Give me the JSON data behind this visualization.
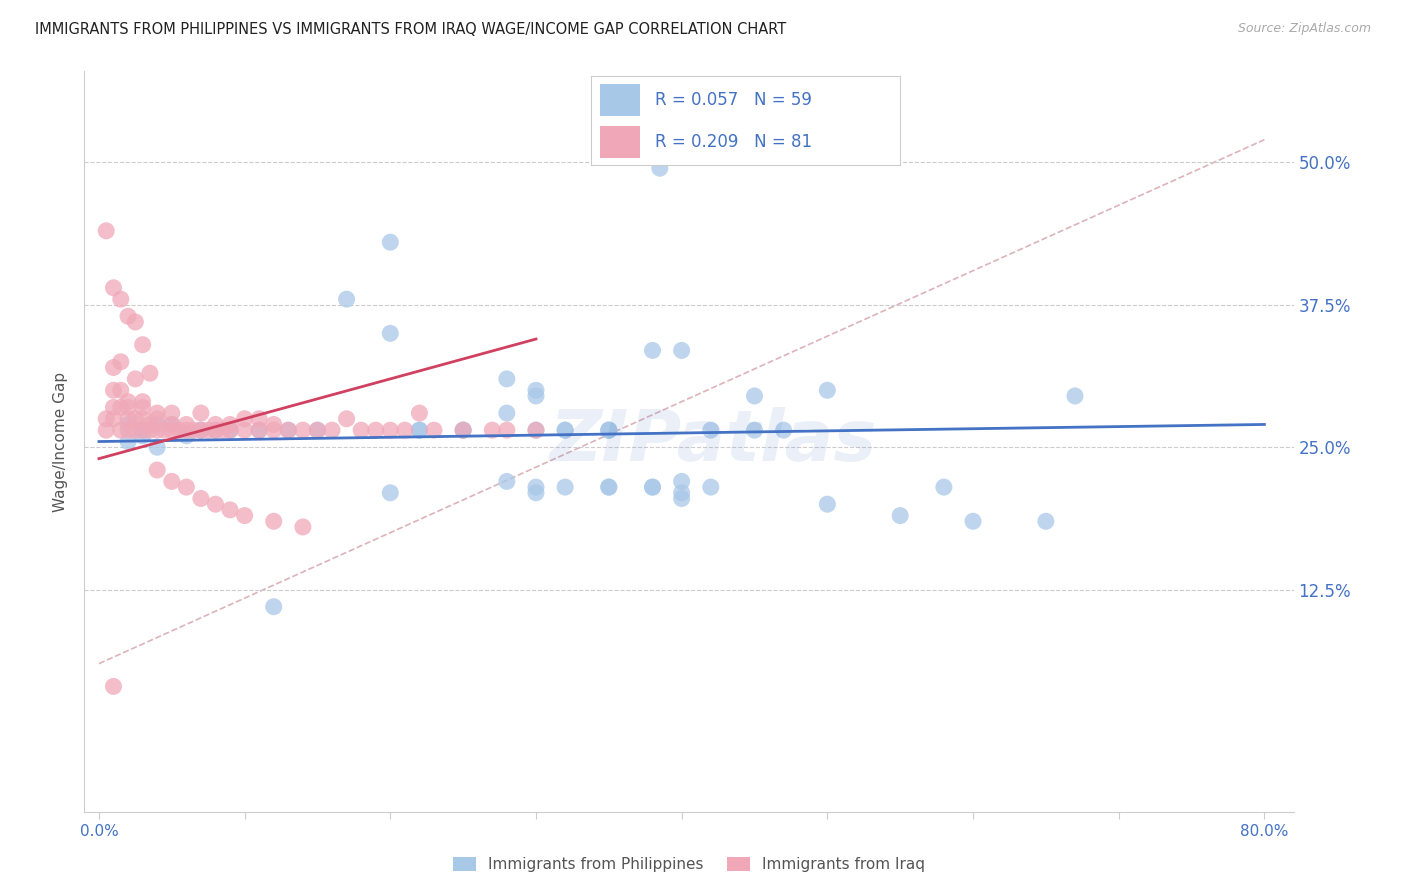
{
  "title": "IMMIGRANTS FROM PHILIPPINES VS IMMIGRANTS FROM IRAQ WAGE/INCOME GAP CORRELATION CHART",
  "source": "Source: ZipAtlas.com",
  "ylabel": "Wage/Income Gap",
  "legend_label_blue": "Immigrants from Philippines",
  "legend_label_pink": "Immigrants from Iraq",
  "r_blue": "R = 0.057",
  "n_blue": "N = 59",
  "r_pink": "R = 0.209",
  "n_pink": "N = 81",
  "color_blue": "#a8c8e8",
  "color_pink": "#f0a8b8",
  "color_trendline_blue": "#4472c4",
  "color_trendline_pink": "#d04060",
  "color_trendline_dashed": "#d4a0a8",
  "watermark_text": "ZIPatlas",
  "watermark_color": "#4472c4",
  "xlim": [
    0.0,
    0.8
  ],
  "ylim": [
    -0.06,
    0.58
  ],
  "blue_x": [
    0.385,
    0.02,
    0.03,
    0.04,
    0.02,
    0.03,
    0.04,
    0.05,
    0.06,
    0.07,
    0.08,
    0.09,
    0.11,
    0.13,
    0.15,
    0.17,
    0.2,
    0.22,
    0.25,
    0.28,
    0.3,
    0.32,
    0.35,
    0.3,
    0.28,
    0.25,
    0.22,
    0.2,
    0.3,
    0.32,
    0.35,
    0.38,
    0.4,
    0.42,
    0.45,
    0.47,
    0.5,
    0.38,
    0.4,
    0.42,
    0.35,
    0.3,
    0.28,
    0.32,
    0.35,
    0.38,
    0.4,
    0.45,
    0.5,
    0.55,
    0.58,
    0.6,
    0.65,
    0.67,
    0.3,
    0.35,
    0.4,
    0.2,
    0.12
  ],
  "blue_y": [
    0.495,
    0.27,
    0.26,
    0.25,
    0.255,
    0.265,
    0.27,
    0.27,
    0.26,
    0.265,
    0.265,
    0.265,
    0.265,
    0.265,
    0.265,
    0.38,
    0.35,
    0.265,
    0.265,
    0.28,
    0.3,
    0.265,
    0.265,
    0.295,
    0.31,
    0.265,
    0.265,
    0.43,
    0.265,
    0.265,
    0.265,
    0.335,
    0.335,
    0.265,
    0.295,
    0.265,
    0.3,
    0.215,
    0.205,
    0.215,
    0.215,
    0.215,
    0.22,
    0.215,
    0.265,
    0.215,
    0.21,
    0.265,
    0.2,
    0.19,
    0.215,
    0.185,
    0.185,
    0.295,
    0.21,
    0.215,
    0.22,
    0.21,
    0.11
  ],
  "pink_x": [
    0.005,
    0.005,
    0.01,
    0.01,
    0.01,
    0.01,
    0.015,
    0.015,
    0.015,
    0.015,
    0.02,
    0.02,
    0.02,
    0.02,
    0.025,
    0.025,
    0.025,
    0.03,
    0.03,
    0.03,
    0.03,
    0.035,
    0.035,
    0.04,
    0.04,
    0.04,
    0.045,
    0.05,
    0.05,
    0.05,
    0.055,
    0.06,
    0.06,
    0.065,
    0.07,
    0.07,
    0.075,
    0.08,
    0.08,
    0.085,
    0.09,
    0.09,
    0.1,
    0.1,
    0.11,
    0.11,
    0.12,
    0.12,
    0.13,
    0.14,
    0.15,
    0.16,
    0.17,
    0.18,
    0.19,
    0.2,
    0.21,
    0.22,
    0.23,
    0.25,
    0.27,
    0.28,
    0.3,
    0.005,
    0.01,
    0.015,
    0.02,
    0.025,
    0.03,
    0.035,
    0.04,
    0.05,
    0.06,
    0.07,
    0.08,
    0.09,
    0.1,
    0.12,
    0.14,
    0.01
  ],
  "pink_y": [
    0.265,
    0.275,
    0.275,
    0.285,
    0.3,
    0.32,
    0.3,
    0.325,
    0.285,
    0.265,
    0.275,
    0.29,
    0.265,
    0.285,
    0.265,
    0.275,
    0.31,
    0.265,
    0.275,
    0.285,
    0.29,
    0.265,
    0.27,
    0.265,
    0.275,
    0.28,
    0.265,
    0.265,
    0.28,
    0.27,
    0.265,
    0.265,
    0.27,
    0.265,
    0.265,
    0.28,
    0.265,
    0.265,
    0.27,
    0.265,
    0.265,
    0.27,
    0.265,
    0.275,
    0.265,
    0.275,
    0.265,
    0.27,
    0.265,
    0.265,
    0.265,
    0.265,
    0.275,
    0.265,
    0.265,
    0.265,
    0.265,
    0.28,
    0.265,
    0.265,
    0.265,
    0.265,
    0.265,
    0.44,
    0.39,
    0.38,
    0.365,
    0.36,
    0.34,
    0.315,
    0.23,
    0.22,
    0.215,
    0.205,
    0.2,
    0.195,
    0.19,
    0.185,
    0.18,
    0.04
  ]
}
